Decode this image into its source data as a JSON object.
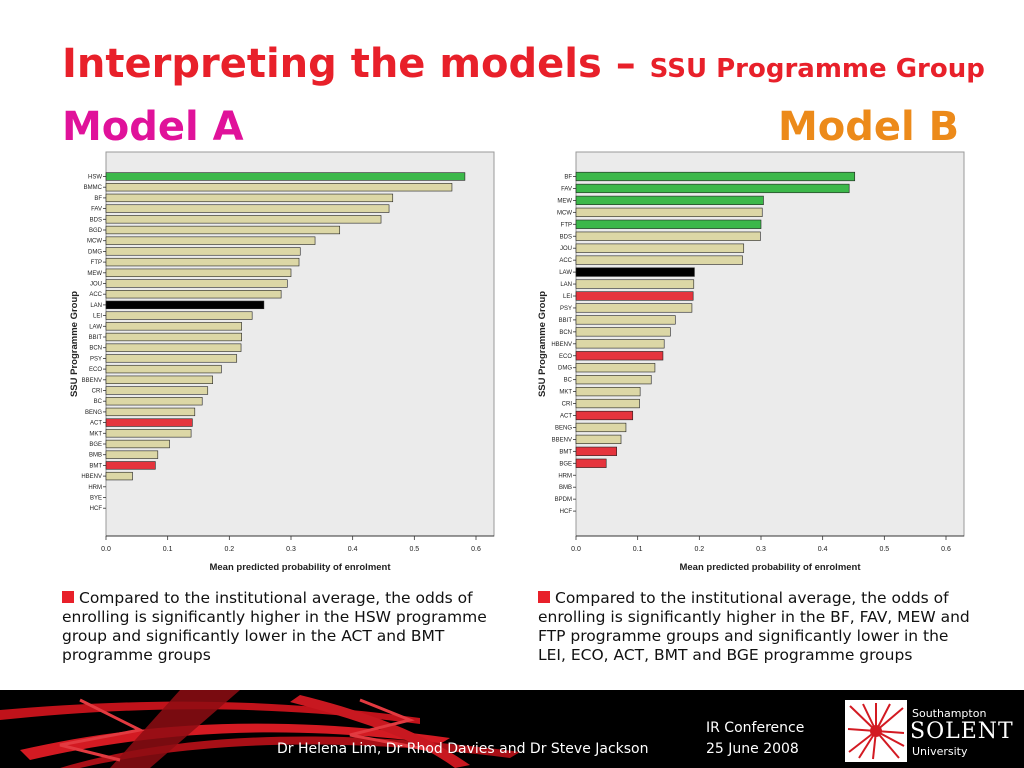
{
  "slide": {
    "title_main": "Interpreting the models –",
    "title_sub": "SSU Programme Group",
    "model_a_label": "Model A",
    "model_b_label": "Model B"
  },
  "chart_data": [
    {
      "type": "bar",
      "orientation": "horizontal",
      "panel": "Model A",
      "ylabel": "SSU Programme Group",
      "xlabel": "Mean predicted probability of enrolment",
      "xlim": [
        0,
        0.6
      ],
      "xticks": [
        "0.0",
        "0.1",
        "0.2",
        "0.3",
        "0.4",
        "0.5",
        "0.6"
      ],
      "grid": false,
      "colors": {
        "higher": "#3cb84a",
        "lower": "#e5343d",
        "average": "#000000",
        "other": "#dcd7a6"
      },
      "categories": [
        "HSW",
        "BMMC",
        "BF",
        "FAV",
        "BDS",
        "BGD",
        "MCW",
        "DMG",
        "FTP",
        "MEW",
        "JOU",
        "ACC",
        "LAN",
        "LEI",
        "LAW",
        "BBIT",
        "BCN",
        "PSY",
        "ECO",
        "BBENV",
        "CRI",
        "BC",
        "BENG",
        "ACT",
        "MKT",
        "BGE",
        "BMB",
        "BMT",
        "HBENV",
        "HRM",
        "BYE",
        "HCF"
      ],
      "values": [
        0.582,
        0.561,
        0.465,
        0.459,
        0.446,
        0.379,
        0.339,
        0.315,
        0.313,
        0.3,
        0.294,
        0.284,
        0.256,
        0.237,
        0.22,
        0.22,
        0.219,
        0.212,
        0.187,
        0.173,
        0.165,
        0.156,
        0.144,
        0.14,
        0.138,
        0.103,
        0.084,
        0.08,
        0.043,
        0.0,
        0.0,
        0.0
      ],
      "status": [
        "higher",
        "other",
        "other",
        "other",
        "other",
        "other",
        "other",
        "other",
        "other",
        "other",
        "other",
        "other",
        "average",
        "other",
        "other",
        "other",
        "other",
        "other",
        "other",
        "other",
        "other",
        "other",
        "other",
        "lower",
        "other",
        "other",
        "other",
        "lower",
        "other",
        "other",
        "other",
        "other"
      ]
    },
    {
      "type": "bar",
      "orientation": "horizontal",
      "panel": "Model B",
      "ylabel": "SSU Programme Group",
      "xlabel": "Mean predicted probability of enrolment",
      "xlim": [
        0,
        0.6
      ],
      "xticks": [
        "0.0",
        "0.1",
        "0.2",
        "0.3",
        "0.4",
        "0.5",
        "0.6"
      ],
      "grid": false,
      "colors": {
        "higher": "#3cb84a",
        "lower": "#e5343d",
        "average": "#000000",
        "other": "#dcd7a6"
      },
      "categories": [
        "BF",
        "FAV",
        "MEW",
        "MCW",
        "FTP",
        "BDS",
        "JOU",
        "ACC",
        "LAW",
        "LAN",
        "LEI",
        "PSY",
        "BBIT",
        "BCN",
        "HBENV",
        "ECO",
        "DMG",
        "BC",
        "MKT",
        "CRI",
        "ACT",
        "BENG",
        "BBENV",
        "BMT",
        "BGE",
        "HRM",
        "BMB",
        "BPDM",
        "HCF"
      ],
      "values": [
        0.452,
        0.443,
        0.304,
        0.302,
        0.3,
        0.299,
        0.272,
        0.27,
        0.192,
        0.191,
        0.19,
        0.188,
        0.161,
        0.153,
        0.143,
        0.141,
        0.128,
        0.122,
        0.104,
        0.103,
        0.092,
        0.081,
        0.073,
        0.066,
        0.049,
        0.0,
        0.0,
        0.0,
        0.0
      ],
      "status": [
        "higher",
        "higher",
        "higher",
        "other",
        "higher",
        "other",
        "other",
        "other",
        "average",
        "other",
        "lower",
        "other",
        "other",
        "other",
        "other",
        "lower",
        "other",
        "other",
        "other",
        "other",
        "lower",
        "other",
        "other",
        "lower",
        "lower",
        "other",
        "other",
        "other",
        "other"
      ]
    }
  ],
  "captions": {
    "model_a": "Compared to the institutional average, the odds of enrolling is significantly higher in the HSW programme group and significantly lower in the ACT and BMT programme groups",
    "model_b": "Compared to the institutional average, the odds of enrolling is significantly higher in the BF, FAV, MEW and FTP programme groups and significantly lower in the LEI, ECO, ACT, BMT and BGE programme groups"
  },
  "footer": {
    "authors": "Dr Helena Lim, Dr Rhod Davies and Dr Steve Jackson",
    "conference": "IR Conference",
    "date": "25 June 2008",
    "logo_line1": "Southampton",
    "logo_line2": "SOLENT",
    "logo_line3": "University"
  }
}
